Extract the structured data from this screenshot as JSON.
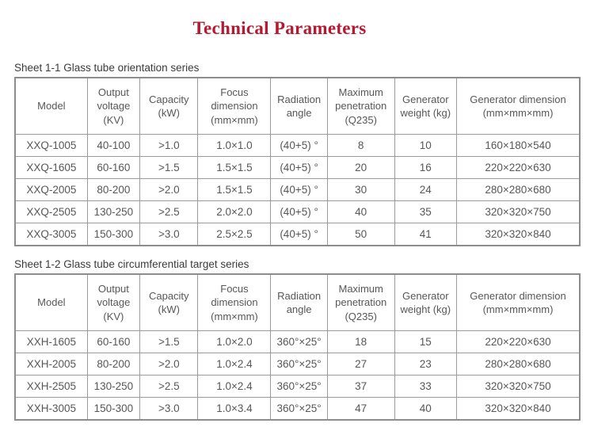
{
  "title": "Technical Parameters",
  "colors": {
    "title": "#b5182f",
    "border": "#9c9c9c",
    "text": "#575757"
  },
  "table1": {
    "caption": "Sheet 1-1 Glass tube orientation series",
    "headers": [
      "Model",
      "Output voltage (KV)",
      "Capacity (kW)",
      "Focus dimension (mm×mm)",
      "Radiation angle",
      "Maximum penetration (Q235)",
      "Generator weight (kg)",
      "Generator dimension (mm×mm×mm)"
    ],
    "rows": [
      [
        "XXQ-1005",
        "40-100",
        ">1.0",
        "1.0×1.0",
        "(40+5) °",
        "8",
        "10",
        "160×180×540"
      ],
      [
        "XXQ-1605",
        "60-160",
        ">1.5",
        "1.5×1.5",
        "(40+5) °",
        "20",
        "16",
        "220×220×630"
      ],
      [
        "XXQ-2005",
        "80-200",
        ">2.0",
        "1.5×1.5",
        "(40+5) °",
        "30",
        "24",
        "280×280×680"
      ],
      [
        "XXQ-2505",
        "130-250",
        ">2.5",
        "2.0×2.0",
        "(40+5) °",
        "40",
        "35",
        "320×320×750"
      ],
      [
        "XXQ-3005",
        "150-300",
        ">3.0",
        "2.5×2.5",
        "(40+5) °",
        "50",
        "41",
        "320×320×840"
      ]
    ]
  },
  "table2": {
    "caption": "Sheet 1-2 Glass tube circumferential target series",
    "headers": [
      "Model",
      "Output voltage (KV)",
      "Capacity (kW)",
      "Focus dimension (mm×mm)",
      "Radiation angle",
      "Maximum penetration (Q235)",
      "Generator weight (kg)",
      "Generator dimension (mm×mm×mm)"
    ],
    "rows": [
      [
        "XXH-1605",
        "60-160",
        ">1.5",
        "1.0×2.0",
        "360°×25°",
        "18",
        "15",
        "220×220×630"
      ],
      [
        "XXH-2005",
        "80-200",
        ">2.0",
        "1.0×2.4",
        "360°×25°",
        "27",
        "23",
        "280×280×680"
      ],
      [
        "XXH-2505",
        "130-250",
        ">2.5",
        "1.0×2.4",
        "360°×25°",
        "37",
        "33",
        "320×320×750"
      ],
      [
        "XXH-3005",
        "150-300",
        ">3.0",
        "1.0×3.4",
        "360°×25°",
        "47",
        "40",
        "320×320×840"
      ]
    ]
  }
}
